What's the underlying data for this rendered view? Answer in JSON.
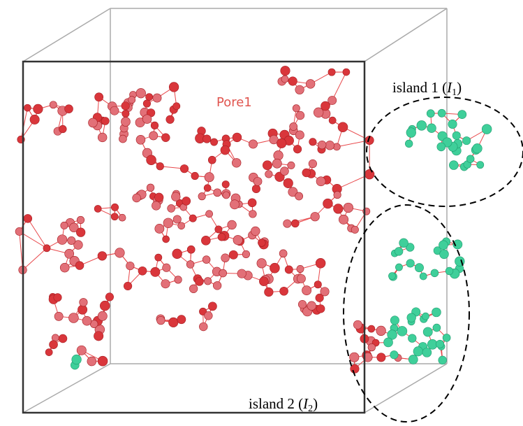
{
  "labels": {
    "pore": "Pore1",
    "island1": {
      "prefix": "island 1 (",
      "symbol": "I",
      "subscript": "1",
      "suffix": ")"
    },
    "island2": {
      "prefix": "island 2 (",
      "symbol": "I",
      "subscript": "2",
      "suffix": ")"
    }
  }
}
